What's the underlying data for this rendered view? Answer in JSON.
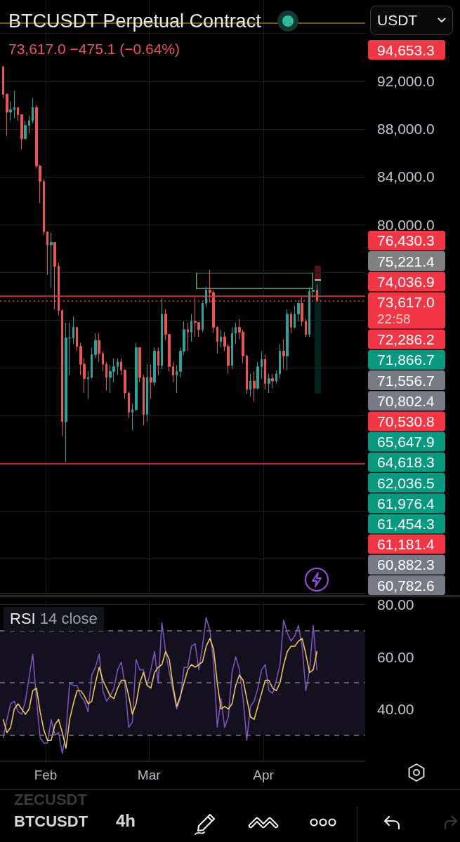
{
  "chart_data": [
    {
      "type": "candlestick",
      "title": "BTCUSDT Perpetual Contract",
      "subtitle": "73,617.0 −475.1 (−0.64%)",
      "ylabel": "USDT",
      "x": [
        "--01-20T12:00",
        "--01-21T12:00",
        "--01-22T12:00",
        "--01-23T12:00",
        "--01-24T12:00",
        "--01-25T12:00",
        "--01-26T12:00",
        "--01-27T12:00",
        "--01-28T12:00",
        "--01-29T12:00",
        "--01-30T12:00",
        "--01-31T12:00",
        "--02-01T12:00",
        "--02-02T12:00",
        "--02-03T12:00",
        "--02-04T12:00",
        "--02-05T12:00",
        "--02-06T12:00",
        "--02-07T12:00",
        "--02-08T12:00",
        "--02-09T12:00",
        "--02-10T12:00",
        "--02-11T12:00",
        "--02-12T12:00",
        "--02-13T12:00",
        "--02-14T12:00",
        "--02-15T12:00",
        "--02-16T12:00",
        "--02-17T12:00",
        "--02-18T12:00",
        "--02-19T12:00",
        "--02-20T12:00",
        "--02-21T12:00",
        "--02-22T12:00",
        "--02-23T12:00",
        "--02-24T12:00",
        "--02-25T12:00",
        "--02-26T12:00",
        "--02-27T12:00",
        "--02-28T12:00",
        "--03-01T12:00",
        "--03-02T12:00",
        "--03-03T12:00",
        "--03-04T12:00",
        "--03-05T12:00",
        "--03-06T12:00",
        "--03-07T12:00",
        "--03-08T12:00",
        "--03-09T12:00",
        "--03-10T12:00",
        "--03-11T12:00",
        "--03-12T12:00",
        "--03-13T12:00",
        "--03-14T12:00",
        "--03-15T12:00",
        "--03-16T12:00",
        "--03-17T12:00",
        "--03-18T12:00",
        "--03-19T12:00",
        "--03-20T12:00",
        "--03-21T12:00",
        "--03-22T12:00",
        "--03-23T12:00",
        "--03-24T12:00",
        "--03-25T12:00",
        "--03-26T12:00",
        "--03-27T12:00",
        "--03-28T12:00",
        "--03-29T12:00",
        "--03-30T12:00",
        "--03-31T12:00",
        "--04-01T12:00",
        "--04-02T12:00",
        "--04-03T12:00",
        "--04-04T12:00",
        "--04-05T12:00",
        "--04-06T12:00",
        "--04-07T12:00",
        "--04-08T12:00",
        "--04-09T12:00",
        "--04-10T12:00",
        "--04-11T12:00",
        "--04-12T12:00",
        "--04-13T12:00",
        "--04-14T12:00",
        "--04-15T12:00"
      ],
      "ohlc": [
        [
          93200,
          93300,
          90600,
          90900
        ],
        [
          90900,
          91000,
          87400,
          89400
        ],
        [
          89400,
          90300,
          88700,
          89600
        ],
        [
          89600,
          91200,
          88900,
          89800
        ],
        [
          89800,
          89800,
          88700,
          89200
        ],
        [
          89200,
          89200,
          86300,
          87200
        ],
        [
          87200,
          88700,
          87100,
          88300
        ],
        [
          88300,
          89100,
          87600,
          88700
        ],
        [
          88700,
          90600,
          88500,
          89800
        ],
        [
          89800,
          90000,
          84700,
          84900
        ],
        [
          84900,
          85000,
          81800,
          83600
        ],
        [
          83600,
          83800,
          79100,
          79400
        ],
        [
          79400,
          79400,
          75800,
          78300
        ],
        [
          78300,
          79300,
          74700,
          78500
        ],
        [
          78500,
          78500,
          72900,
          76500
        ],
        [
          76500,
          76800,
          72400,
          72800
        ],
        [
          72800,
          72900,
          62300,
          63500
        ],
        [
          63500,
          71800,
          60100,
          70500
        ],
        [
          70500,
          71800,
          67400,
          70500
        ],
        [
          70500,
          72300,
          70000,
          71400
        ],
        [
          71400,
          71400,
          69400,
          69800
        ],
        [
          69800,
          70100,
          67400,
          68300
        ],
        [
          68300,
          68800,
          65900,
          67100
        ],
        [
          67100,
          67700,
          65400,
          67200
        ],
        [
          67200,
          69700,
          67100,
          69100
        ],
        [
          69100,
          70900,
          68800,
          70300
        ],
        [
          70300,
          70900,
          68500,
          69200
        ],
        [
          69200,
          69400,
          67700,
          68300
        ],
        [
          68300,
          68500,
          66100,
          67200
        ],
        [
          67200,
          68200,
          65900,
          67700
        ],
        [
          67700,
          68800,
          66800,
          68100
        ],
        [
          68100,
          68800,
          67400,
          68500
        ],
        [
          68500,
          68800,
          67400,
          67800
        ],
        [
          67800,
          67900,
          65400,
          65900
        ],
        [
          65900,
          66000,
          63800,
          64300
        ],
        [
          64300,
          65000,
          62800,
          64500
        ],
        [
          64500,
          70100,
          64400,
          69700
        ],
        [
          69700,
          69700,
          66800,
          67200
        ],
        [
          67200,
          67400,
          63200,
          64100
        ],
        [
          64100,
          68300,
          63500,
          67200
        ],
        [
          67200,
          68300,
          65400,
          66800
        ],
        [
          66800,
          69700,
          66500,
          69400
        ],
        [
          69400,
          69700,
          67400,
          68200
        ],
        [
          68200,
          73800,
          67900,
          72500
        ],
        [
          72500,
          72900,
          70300,
          70800
        ],
        [
          70800,
          70800,
          67700,
          68100
        ],
        [
          68100,
          68500,
          66800,
          67400
        ],
        [
          67400,
          68200,
          65900,
          67700
        ],
        [
          67700,
          69700,
          67200,
          69400
        ],
        [
          69400,
          71900,
          69100,
          71200
        ],
        [
          71200,
          71800,
          69400,
          71000
        ],
        [
          71000,
          72500,
          70200,
          71900
        ],
        [
          71900,
          73900,
          70600,
          71800
        ],
        [
          71800,
          71800,
          70600,
          71200
        ],
        [
          71200,
          73500,
          71000,
          73400
        ],
        [
          73400,
          74800,
          73100,
          74500
        ],
        [
          74500,
          76200,
          73500,
          74300
        ],
        [
          74300,
          74500,
          70900,
          71400
        ],
        [
          71400,
          71500,
          69200,
          70200
        ],
        [
          70200,
          71200,
          69700,
          70600
        ],
        [
          70600,
          71000,
          69400,
          69800
        ],
        [
          69800,
          70000,
          67500,
          68200
        ],
        [
          68200,
          71400,
          67900,
          70900
        ],
        [
          70900,
          71800,
          70000,
          71400
        ],
        [
          71400,
          72100,
          70400,
          71000
        ],
        [
          71000,
          71200,
          68400,
          69000
        ],
        [
          69000,
          69100,
          65800,
          66200
        ],
        [
          66200,
          67500,
          65600,
          66900
        ],
        [
          66900,
          67700,
          65200,
          66300
        ],
        [
          66300,
          68500,
          66200,
          68100
        ],
        [
          68100,
          69400,
          67100,
          68700
        ],
        [
          68700,
          69100,
          66200,
          66700
        ],
        [
          66700,
          67500,
          65900,
          67100
        ],
        [
          67100,
          67500,
          66300,
          66900
        ],
        [
          66900,
          67800,
          66700,
          67500
        ],
        [
          67500,
          70000,
          67100,
          69400
        ],
        [
          69400,
          70400,
          67900,
          69000
        ],
        [
          69000,
          72900,
          67800,
          72500
        ],
        [
          72500,
          72700,
          70900,
          71400
        ],
        [
          71400,
          73200,
          71300,
          72500
        ],
        [
          72500,
          73700,
          71900,
          73400
        ],
        [
          73400,
          73900,
          71500,
          71900
        ],
        [
          71900,
          72100,
          70600,
          70800
        ],
        [
          70800,
          74700,
          70600,
          74400
        ],
        [
          74400,
          75500,
          73900,
          74500
        ],
        [
          74500,
          75000,
          73500,
          73617
        ]
      ],
      "colors": [
        "#ef5350",
        "#ef5350",
        "#26a69a",
        "#26a69a",
        "#ef5350",
        "#ef5350",
        "#26a69a",
        "#26a69a",
        "#26a69a",
        "#ef5350",
        "#ef5350",
        "#ef5350",
        "#ef5350",
        "#26a69a",
        "#ef5350",
        "#ef5350",
        "#ef5350",
        "#26a69a",
        "#26a69a",
        "#26a69a",
        "#ef5350",
        "#ef5350",
        "#ef5350",
        "#26a69a",
        "#26a69a",
        "#26a69a",
        "#ef5350",
        "#ef5350",
        "#ef5350",
        "#26a69a",
        "#26a69a",
        "#26a69a",
        "#ef5350",
        "#ef5350",
        "#ef5350",
        "#26a69a",
        "#26a69a",
        "#ef5350",
        "#ef5350",
        "#26a69a",
        "#ef5350",
        "#26a69a",
        "#ef5350",
        "#26a69a",
        "#ef5350",
        "#ef5350",
        "#ef5350",
        "#26a69a",
        "#26a69a",
        "#26a69a",
        "#ef5350",
        "#26a69a",
        "#ef5350",
        "#ef5350",
        "#26a69a",
        "#26a69a",
        "#ef5350",
        "#ef5350",
        "#ef5350",
        "#26a69a",
        "#ef5350",
        "#ef5350",
        "#26a69a",
        "#26a69a",
        "#ef5350",
        "#ef5350",
        "#ef5350",
        "#26a69a",
        "#ef5350",
        "#26a69a",
        "#26a69a",
        "#ef5350",
        "#26a69a",
        "#ef5350",
        "#26a69a",
        "#26a69a",
        "#ef5350",
        "#26a69a",
        "#ef5350",
        "#26a69a",
        "#26a69a",
        "#ef5350",
        "#ef5350",
        "#26a69a",
        "#26a69a",
        "#ef5350"
      ],
      "xlim": [
        "--01-19T15:00",
        "--04-28T14:00"
      ],
      "xticks": [
        {
          "value": "--02-01",
          "label": null
        },
        {
          "value": "--03-01",
          "label": null
        },
        {
          "value": "--04-01",
          "label": null
        }
      ],
      "ylim": [
        49100,
        98800
      ],
      "yticks": [
        {
          "value": 52000,
          "label": null
        },
        {
          "value": 56000,
          "label": null
        },
        {
          "value": 64000,
          "label": null
        },
        {
          "value": 68000,
          "label": null
        },
        {
          "value": 72000,
          "label": null
        },
        {
          "value": 76000,
          "label": null
        },
        {
          "value": 80000,
          "label": "80,000.0"
        },
        {
          "value": 84000,
          "label": "84,000.0"
        },
        {
          "value": 88000,
          "label": "88,000.0"
        },
        {
          "value": 92000,
          "label": "92,000.0"
        },
        {
          "value": 96000,
          "label": null
        }
      ],
      "grid": true,
      "tick_labels": "y",
      "ref_lines": [
        {
          "axis": "y",
          "value": 96900,
          "color": "#8c7d1f",
          "line_style": "solid"
        },
        {
          "axis": "y",
          "value": 74036.9,
          "color": "#f23645",
          "line_style": "solid"
        },
        {
          "axis": "y",
          "value": 73617.0,
          "color": "#f23645",
          "line_style": "dotted"
        },
        {
          "axis": "y",
          "value": 60000,
          "color": "#f23645",
          "line_style": "solid"
        }
      ],
      "annotations": [
        "94,653.3",
        "76,430.3",
        "75,221.4",
        "74,036.9",
        "73,617.0\n22:58",
        "72,286.2",
        "71,866.7",
        "71,556.7",
        "70,802.4",
        "70,530.8",
        "65,647.9",
        "64,618.3",
        "62,036.5",
        "61,976.4",
        "61,454.3",
        "61,181.4",
        "60,882.3",
        "60,782.6"
      ]
    },
    {
      "type": "line",
      "title": "RSI 14 close",
      "x": [
        "--01-20T12:00",
        "--01-21T12:00",
        "--01-22T12:00",
        "--01-23T12:00",
        "--01-24T12:00",
        "--01-25T12:00",
        "--01-26T12:00",
        "--01-27T12:00",
        "--01-28T12:00",
        "--01-29T12:00",
        "--01-30T12:00",
        "--01-31T12:00",
        "--02-01T12:00",
        "--02-02T12:00",
        "--02-03T12:00",
        "--02-04T12:00",
        "--02-05T12:00",
        "--02-06T12:00",
        "--02-07T12:00",
        "--02-08T12:00",
        "--02-09T12:00",
        "--02-10T12:00",
        "--02-11T12:00",
        "--02-12T12:00",
        "--02-13T12:00",
        "--02-14T12:00",
        "--02-15T12:00",
        "--02-16T12:00",
        "--02-17T12:00",
        "--02-18T12:00",
        "--02-19T12:00",
        "--02-20T12:00",
        "--02-21T12:00",
        "--02-22T12:00",
        "--02-23T12:00",
        "--02-24T12:00",
        "--02-25T12:00",
        "--02-26T12:00",
        "--02-27T12:00",
        "--02-28T12:00",
        "--03-01T12:00",
        "--03-02T12:00",
        "--03-03T12:00",
        "--03-04T12:00",
        "--03-05T12:00",
        "--03-06T12:00",
        "--03-07T12:00",
        "--03-08T12:00",
        "--03-09T12:00",
        "--03-10T12:00",
        "--03-11T12:00",
        "--03-12T12:00",
        "--03-13T12:00",
        "--03-14T12:00",
        "--03-15T12:00",
        "--03-16T12:00",
        "--03-17T12:00",
        "--03-18T12:00",
        "--03-19T12:00",
        "--03-20T12:00",
        "--03-21T12:00",
        "--03-22T12:00",
        "--03-23T12:00",
        "--03-24T12:00",
        "--03-25T12:00",
        "--03-26T12:00",
        "--03-27T12:00",
        "--03-28T12:00",
        "--03-29T12:00",
        "--03-30T12:00",
        "--03-31T12:00",
        "--04-01T12:00",
        "--04-02T12:00",
        "--04-03T12:00",
        "--04-04T12:00",
        "--04-05T12:00",
        "--04-06T12:00",
        "--04-07T12:00",
        "--04-08T12:00",
        "--04-09T12:00",
        "--04-10T12:00",
        "--04-11T12:00",
        "--04-12T12:00",
        "--04-13T12:00",
        "--04-14T12:00",
        "--04-15T12:00"
      ],
      "series": [
        {
          "color": "#7e57c2",
          "values": [
            29,
            36,
            42,
            43,
            39,
            38,
            43,
            52,
            61,
            44,
            29,
            27,
            27,
            36,
            30,
            31,
            23,
            31,
            50,
            49,
            49,
            45,
            43,
            39,
            53,
            56,
            61,
            47,
            43,
            45,
            48,
            55,
            58,
            49,
            33,
            35,
            59,
            55,
            55,
            49,
            55,
            62,
            50,
            73,
            62,
            54,
            47,
            40,
            44,
            56,
            56,
            64,
            65,
            55,
            64,
            75,
            70,
            58,
            33,
            44,
            33,
            37,
            54,
            60,
            55,
            44,
            28,
            41,
            43,
            48,
            55,
            57,
            47,
            46,
            51,
            57,
            74,
            69,
            66,
            68,
            72,
            64,
            47,
            55,
            72,
            55
          ]
        },
        {
          "color": "#f7d24a",
          "values": [
            36,
            31,
            33,
            40,
            42,
            40,
            38,
            40,
            47,
            48,
            39,
            32,
            28,
            28,
            34,
            36,
            31,
            25,
            36,
            42,
            47,
            47,
            45,
            42,
            43,
            50,
            56,
            51,
            48,
            45,
            44,
            48,
            51,
            51,
            45,
            38,
            42,
            50,
            54,
            49,
            48,
            54,
            56,
            57,
            62,
            59,
            49,
            41,
            45,
            50,
            55,
            57,
            56,
            57,
            58,
            64,
            67,
            63,
            50,
            40,
            41,
            40,
            42,
            49,
            53,
            51,
            44,
            37,
            36,
            41,
            46,
            51,
            51,
            48,
            47,
            50,
            57,
            62,
            64,
            64,
            66,
            67,
            61,
            54,
            55,
            62
          ]
        }
      ],
      "xlim": [
        "--01-19T15:00",
        "--04-28T14:00"
      ],
      "xticks": [
        {
          "value": "--02-01",
          "label": "Feb"
        },
        {
          "value": "--03-01",
          "label": "Mar"
        },
        {
          "value": "--04-01",
          "label": "Apr"
        }
      ],
      "ylim": [
        20,
        81
      ],
      "yticks": [
        {
          "value": 40,
          "label": "40.00"
        },
        {
          "value": 60,
          "label": "60.00"
        },
        {
          "value": 80,
          "label": "80.00"
        }
      ],
      "grid": true,
      "ref_lines": [
        {
          "axis": "y",
          "value": 70,
          "color": "#787b86",
          "line_style": "dashed"
        },
        {
          "axis": "y",
          "value": 50,
          "color": "#787b86",
          "line_style": "dashed"
        },
        {
          "axis": "y",
          "value": 30,
          "color": "#787b86",
          "line_style": "dashed"
        }
      ],
      "bands": [
        {
          "axis": "y",
          "from": 30,
          "to": 70,
          "color": "#14101f"
        }
      ]
    },
    {
      "type": "other",
      "annotations": [
        "ZECUSDT",
        "BTCUSDT",
        "4h"
      ]
    }
  ]
}
